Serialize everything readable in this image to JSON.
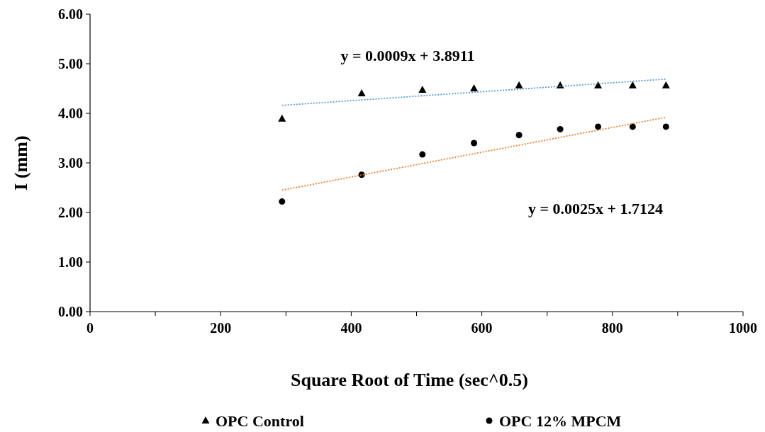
{
  "chart_data": {
    "type": "scatter",
    "xlabel": "Square Root of Time (sec^0.5)",
    "ylabel": "I (mm)",
    "xlim": [
      0,
      1000
    ],
    "xticks": [
      0,
      {
        "value": 100,
        "label": null
      },
      200,
      {
        "value": 300,
        "label": null
      },
      400,
      {
        "value": 500,
        "label": null
      },
      600,
      {
        "value": 700,
        "label": null
      },
      800,
      {
        "value": 900,
        "label": null
      },
      1000
    ],
    "ylim": [
      0,
      6
    ],
    "yticks": [
      {
        "value": 0,
        "label": "0.00"
      },
      {
        "value": 1,
        "label": "1.00"
      },
      {
        "value": 2,
        "label": "2.00"
      },
      {
        "value": 3,
        "label": "3.00"
      },
      {
        "value": 4,
        "label": "4.00"
      },
      {
        "value": 5,
        "label": "5.00"
      },
      {
        "value": 6,
        "label": "6.00"
      }
    ],
    "grid": false,
    "legend": "bottom",
    "series": [
      {
        "name": "OPC Control",
        "marker": "triangle",
        "color": "#000000",
        "x": [
          294,
          416,
          509,
          588,
          657,
          720,
          778,
          831,
          882
        ],
        "values": [
          3.89,
          4.4,
          4.47,
          4.5,
          4.56,
          4.56,
          4.56,
          4.56,
          4.56
        ]
      },
      {
        "name": "OPC 12% MPCM",
        "marker": "circle",
        "color": "#000000",
        "x": [
          294,
          416,
          509,
          588,
          657,
          720,
          778,
          831,
          882
        ],
        "values": [
          2.22,
          2.76,
          3.17,
          3.4,
          3.56,
          3.68,
          3.73,
          3.73,
          3.73
        ]
      },
      {
        "type": "line",
        "marker": "none",
        "line_style": "dotted",
        "color": "#5b9bd5",
        "x": [
          294,
          882
        ],
        "values": [
          4.16,
          4.69
        ]
      },
      {
        "type": "line",
        "marker": "none",
        "line_style": "dotted",
        "color": "#ed7d31",
        "x": [
          294,
          882
        ],
        "values": [
          2.45,
          3.92
        ]
      }
    ],
    "annotations": [
      "y = 0.0009x + 3.8911",
      "y = 0.0025x + 1.7124"
    ]
  }
}
